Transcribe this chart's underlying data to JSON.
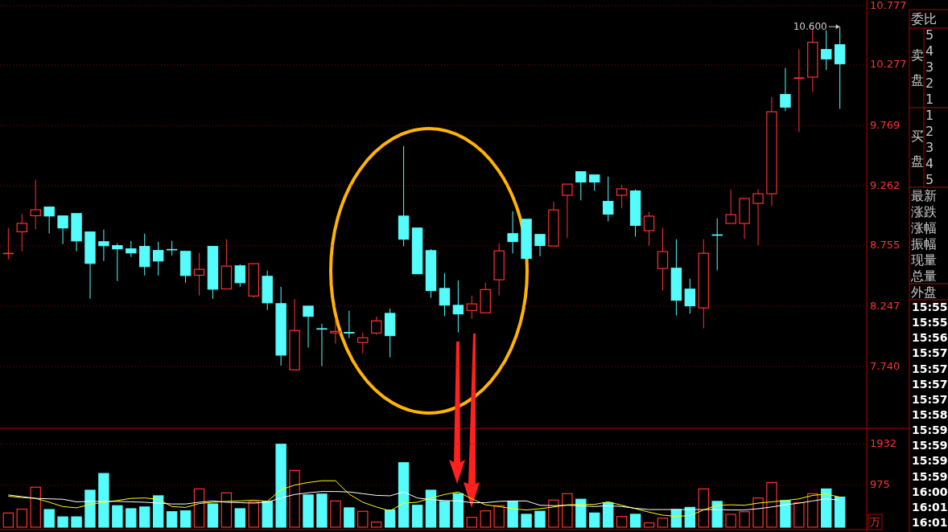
{
  "chart_data": [
    {
      "type": "candlestick",
      "categories": [
        null,
        null,
        null,
        null,
        null,
        null,
        null,
        null,
        null,
        null,
        null,
        null,
        null,
        null,
        null,
        null,
        null,
        null,
        null,
        null,
        null,
        null,
        null,
        null,
        null,
        null,
        null,
        null,
        null,
        null,
        null,
        null,
        null,
        null,
        null,
        null,
        null,
        null,
        null,
        null,
        null,
        null,
        null,
        null,
        null,
        null,
        null,
        null,
        null,
        null,
        null,
        null,
        null,
        null,
        null,
        null,
        null,
        null,
        null,
        null,
        null,
        null
      ],
      "ohlc": [
        [
          8.693,
          8.906,
          8.642,
          8.693
        ],
        [
          8.874,
          9.021,
          8.709,
          8.944
        ],
        [
          9.009,
          9.312,
          8.894,
          9.059
        ],
        [
          9.082,
          9.082,
          8.86,
          9.007
        ],
        [
          9.007,
          9.007,
          8.77,
          8.906
        ],
        [
          9.027,
          9.027,
          8.709,
          8.797
        ],
        [
          8.872,
          8.872,
          8.31,
          8.608
        ],
        [
          8.79,
          8.892,
          8.628,
          8.757
        ],
        [
          8.757,
          8.777,
          8.459,
          8.73
        ],
        [
          8.73,
          8.797,
          8.662,
          8.696
        ],
        [
          8.75,
          8.858,
          8.506,
          8.581
        ],
        [
          8.716,
          8.79,
          8.506,
          8.628
        ],
        [
          8.725,
          8.797,
          8.675,
          8.722
        ],
        [
          8.709,
          8.709,
          8.445,
          8.506
        ],
        [
          8.508,
          8.696,
          8.337,
          8.558
        ],
        [
          8.75,
          8.75,
          8.31,
          8.391
        ],
        [
          8.393,
          8.811,
          8.393,
          8.585
        ],
        [
          8.587,
          8.601,
          8.411,
          8.445
        ],
        [
          8.333,
          8.606,
          8.317,
          8.606
        ],
        [
          8.499,
          8.547,
          8.215,
          8.276
        ],
        [
          8.269,
          8.411,
          7.748,
          7.836
        ],
        [
          7.712,
          8.309,
          7.712,
          8.043
        ],
        [
          8.248,
          8.248,
          7.899,
          8.163
        ],
        [
          8.058,
          8.1,
          7.743,
          8.056
        ],
        [
          8.023,
          8.149,
          7.933,
          8.036
        ],
        [
          8.026,
          8.208,
          7.98,
          8.022
        ],
        [
          7.942,
          8.023,
          7.851,
          7.982
        ],
        [
          8.021,
          8.16,
          8.007,
          8.124
        ],
        [
          8.187,
          8.228,
          7.818,
          8.0
        ],
        [
          9.006,
          9.595,
          8.752,
          8.812
        ],
        [
          8.905,
          8.905,
          8.521,
          8.521
        ],
        [
          8.715,
          8.729,
          8.318,
          8.379
        ],
        [
          8.397,
          8.526,
          8.163,
          8.257
        ],
        [
          8.255,
          8.465,
          8.027,
          8.183
        ],
        [
          8.212,
          8.336,
          8.142,
          8.267
        ],
        [
          8.192,
          8.445,
          8.192,
          8.388
        ],
        [
          8.47,
          8.776,
          8.339,
          8.713
        ],
        [
          8.858,
          9.047,
          8.691,
          8.792
        ],
        [
          8.979,
          8.979,
          8.65,
          8.65
        ],
        [
          8.851,
          8.851,
          8.668,
          8.758
        ],
        [
          8.754,
          9.128,
          8.754,
          9.058
        ],
        [
          9.181,
          9.275,
          8.822,
          9.275
        ],
        [
          9.379,
          9.379,
          9.138,
          9.293
        ],
        [
          9.352,
          9.352,
          9.219,
          9.293
        ],
        [
          9.129,
          9.338,
          8.962,
          9.023
        ],
        [
          9.181,
          9.271,
          9.07,
          9.235
        ],
        [
          9.217,
          9.23,
          8.833,
          8.928
        ],
        [
          8.883,
          9.041,
          8.755,
          9.005
        ],
        [
          8.565,
          8.905,
          8.38,
          8.707
        ],
        [
          8.567,
          8.811,
          8.17,
          8.298
        ],
        [
          8.391,
          8.479,
          8.184,
          8.251
        ],
        [
          8.233,
          8.811,
          8.062,
          8.693
        ],
        [
          8.848,
          8.987,
          8.549,
          8.846
        ],
        [
          8.944,
          9.23,
          8.944,
          9.018
        ],
        [
          8.944,
          9.154,
          8.813,
          9.154
        ],
        [
          9.113,
          9.23,
          8.759,
          9.194
        ],
        [
          9.194,
          10.009,
          9.09,
          9.884
        ],
        [
          10.029,
          10.252,
          9.889,
          9.923
        ],
        [
          10.169,
          10.408,
          9.713,
          10.169
        ],
        [
          10.175,
          10.59,
          10.051,
          10.469
        ],
        [
          10.408,
          10.57,
          10.234,
          10.329
        ],
        [
          10.448,
          10.6,
          9.909,
          10.288
        ]
      ],
      "ylim": [
        7.24,
        10.777
      ],
      "yticks": [
        {
          "value": 7.74,
          "label": "7.740"
        },
        8.247,
        8.755,
        9.262,
        9.769,
        10.277,
        10.777
      ],
      "grid": "y",
      "tick_labels": "y",
      "annotations": [
        "10.600",
        "委比",
        "卖盘",
        "5",
        "4",
        "3",
        "2",
        "1",
        "买盘",
        "1",
        "2",
        "3",
        "4",
        "5",
        "最新",
        "涨跌",
        "涨幅",
        "振幅",
        "现量",
        "总量",
        "外盘",
        "15:55",
        "15:55",
        "15:56",
        "15:57",
        "15:57",
        "15:57",
        "15:57",
        "15:58",
        "15:59",
        "15:59",
        "15:59",
        "15:59",
        "16:00",
        "16:01",
        "16:01"
      ]
    },
    {
      "type": "bar",
      "categories": [
        null,
        null,
        null,
        null,
        null,
        null,
        null,
        null,
        null,
        null,
        null,
        null,
        null,
        null,
        null,
        null,
        null,
        null,
        null,
        null,
        null,
        null,
        null,
        null,
        null,
        null,
        null,
        null,
        null,
        null,
        null,
        null,
        null,
        null,
        null,
        null,
        null,
        null,
        null,
        null,
        null,
        null,
        null,
        null,
        null,
        null,
        null,
        null,
        null,
        null,
        null,
        null,
        null,
        null,
        null,
        null,
        null,
        null,
        null,
        null,
        null,
        null
      ],
      "series": [
        {
          "type": "bar",
          "colors": [
            "#ff3232",
            "#ff3232",
            "#ff3232",
            "#54fcfc",
            "#54fcfc",
            "#54fcfc",
            "#54fcfc",
            "#54fcfc",
            "#54fcfc",
            "#54fcfc",
            "#54fcfc",
            "#54fcfc",
            "#54fcfc",
            "#54fcfc",
            "#ff3232",
            "#54fcfc",
            "#ff3232",
            "#54fcfc",
            "#ff3232",
            "#54fcfc",
            "#54fcfc",
            "#ff3232",
            "#54fcfc",
            "#54fcfc",
            "#ff3232",
            "#54fcfc",
            "#ff3232",
            "#ff3232",
            "#54fcfc",
            "#54fcfc",
            "#54fcfc",
            "#54fcfc",
            "#54fcfc",
            "#54fcfc",
            "#ff3232",
            "#ff3232",
            "#ff3232",
            "#54fcfc",
            "#54fcfc",
            "#54fcfc",
            "#ff3232",
            "#ff3232",
            "#54fcfc",
            "#54fcfc",
            "#54fcfc",
            "#ff3232",
            "#54fcfc",
            "#ff3232",
            "#ff3232",
            "#54fcfc",
            "#54fcfc",
            "#ff3232",
            "#54fcfc",
            "#ff3232",
            "#ff3232",
            "#ff3232",
            "#ff3232",
            "#54fcfc",
            "#ff3232",
            "#ff3232",
            "#54fcfc",
            "#54fcfc"
          ],
          "values": [
            330,
            420,
            930,
            410,
            240,
            240,
            860,
            1250,
            500,
            430,
            470,
            730,
            360,
            380,
            890,
            540,
            800,
            430,
            590,
            600,
            1930,
            1320,
            750,
            770,
            610,
            450,
            370,
            120,
            400,
            1500,
            510,
            860,
            600,
            780,
            230,
            380,
            500,
            600,
            300,
            370,
            630,
            780,
            650,
            330,
            570,
            250,
            300,
            100,
            210,
            410,
            460,
            890,
            600,
            300,
            360,
            680,
            1040,
            620,
            570,
            780,
            890,
            700
          ]
        },
        {
          "type": "line",
          "color": "#ffff00",
          "values": [
            720,
            690,
            670,
            580,
            480,
            450,
            530,
            580,
            620,
            670,
            680,
            650,
            480,
            460,
            550,
            580,
            600,
            610,
            630,
            600,
            870,
            980,
            1040,
            1080,
            1080,
            770,
            580,
            470,
            380,
            560,
            580,
            680,
            760,
            820,
            660,
            520,
            480,
            430,
            400,
            430,
            470,
            520,
            530,
            530,
            590,
            510,
            430,
            350,
            280,
            250,
            270,
            400,
            510,
            520,
            510,
            560,
            590,
            620,
            660,
            740,
            770,
            700
          ]
        },
        {
          "type": "line",
          "color": "#ffffff",
          "values": [
            750,
            710,
            670,
            660,
            650,
            590,
            600,
            600,
            600,
            590,
            580,
            560,
            540,
            540,
            580,
            610,
            580,
            570,
            560,
            580,
            680,
            760,
            800,
            830,
            830,
            820,
            780,
            740,
            730,
            820,
            680,
            640,
            620,
            610,
            570,
            570,
            600,
            610,
            610,
            510,
            500,
            510,
            500,
            480,
            500,
            480,
            440,
            410,
            410,
            410,
            410,
            410,
            410,
            400,
            400,
            430,
            470,
            520,
            560,
            610,
            660,
            630
          ]
        }
      ],
      "ylim": [
        0,
        2300
      ],
      "yticks": [
        975,
        1932
      ],
      "ylabel": "万",
      "grid": "y",
      "tick_labels": "y"
    }
  ]
}
